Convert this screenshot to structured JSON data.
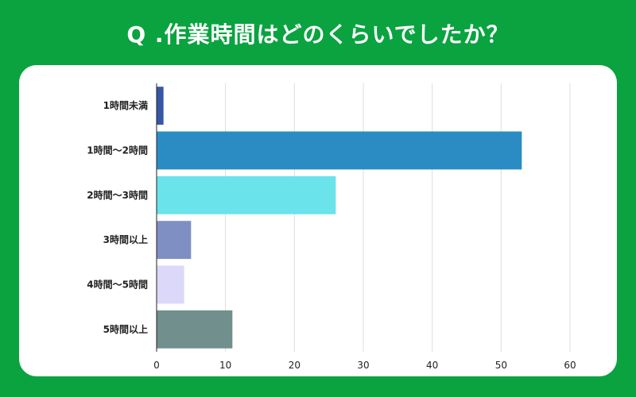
{
  "chart_data": {
    "type": "bar",
    "orientation": "horizontal",
    "title": "Q .作業時間はどのくらいでしたか？",
    "categories": [
      "1時間未満",
      "1時間～2時間",
      "2時間～3時間",
      "3時間以上",
      "4時間～5時間",
      "5時間以上"
    ],
    "values": [
      1,
      53,
      26,
      5,
      4,
      11
    ],
    "colors": [
      "#3656a6",
      "#2b8cc4",
      "#6ae3ea",
      "#7f8fc4",
      "#dcd8fa",
      "#718f8c"
    ],
    "xlim": [
      0,
      60
    ],
    "xticks": [
      0,
      10,
      20,
      30,
      40,
      50,
      60
    ],
    "grid": true,
    "xlabel": "",
    "ylabel": ""
  },
  "theme": {
    "background": "#0aa340",
    "card": "#ffffff"
  }
}
